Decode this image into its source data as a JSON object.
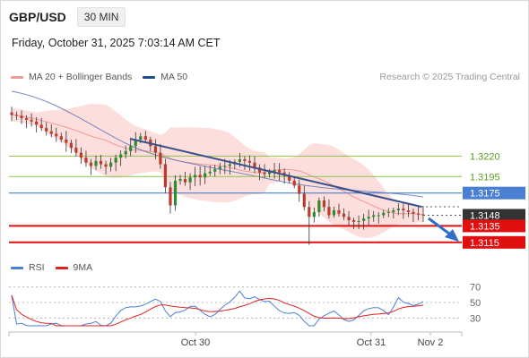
{
  "header": {
    "pair": "GBP/USD",
    "timeframe": "30 MIN"
  },
  "datetime": "Friday, October 31, 2025 7:03:14 AM CET",
  "legend_main": [
    {
      "label": "MA 20 + Bollinger Bands",
      "color": "#f29a94"
    },
    {
      "label": "MA 50",
      "color": "#1f4e8c"
    }
  ],
  "legend_rsi": [
    {
      "label": "RSI",
      "color": "#4a7fd1"
    },
    {
      "label": "9MA",
      "color": "#e02020"
    }
  ],
  "credit": "Research © 2025 Trading Central",
  "colors": {
    "bull": "#2e8b2e",
    "bear": "#c0392b",
    "resistance": "#8bc34a",
    "pivot": "#4a7fd1",
    "support": "#e01010",
    "last": "#333333",
    "trendline": "#3b4f8c",
    "band": "#fbd3d0",
    "ma20": "#f29a94",
    "ma50": "#5a6fb0",
    "rsi": "#4a7fd1",
    "rsi_ma": "#e02020"
  },
  "chart_data": {
    "type": "candlestick",
    "instrument": "GBP/USD",
    "timeframe": "30 MIN",
    "ylim": [
      1.3105,
      1.329
    ],
    "x_ticks": [
      "Oct 30",
      "Oct 31",
      "Nov 2"
    ],
    "levels": [
      {
        "value": 1.322,
        "label": "1.3220",
        "kind": "resistance"
      },
      {
        "value": 1.3195,
        "label": "1.3195",
        "kind": "resistance"
      },
      {
        "value": 1.3175,
        "label": "1.3175",
        "kind": "pivot"
      },
      {
        "value": 1.3148,
        "label": "1.3148",
        "kind": "last"
      },
      {
        "value": 1.3135,
        "label": "1.3135",
        "kind": "support"
      },
      {
        "value": 1.3115,
        "label": "1.3115",
        "kind": "support"
      }
    ],
    "trendline": {
      "from": [
        1.3248
      ],
      "to": [
        1.3161
      ]
    },
    "price_path": [
      1.327,
      1.3269,
      1.3266,
      1.3264,
      1.3262,
      1.3258,
      1.3254,
      1.325,
      1.3247,
      1.3244,
      1.324,
      1.3236,
      1.323,
      1.3224,
      1.3218,
      1.3212,
      1.3208,
      1.3214,
      1.321,
      1.3207,
      1.3212,
      1.3218,
      1.3222,
      1.3226,
      1.3232,
      1.324,
      1.3244,
      1.324,
      1.3232,
      1.3224,
      1.321,
      1.3182,
      1.316,
      1.319,
      1.3192,
      1.3188,
      1.3194,
      1.3197,
      1.3194,
      1.3199,
      1.3201,
      1.3204,
      1.3207,
      1.3208,
      1.321,
      1.3213,
      1.3216,
      1.3214,
      1.3212,
      1.3206,
      1.32,
      1.3198,
      1.3201,
      1.3203,
      1.32,
      1.3196,
      1.319,
      1.3184,
      1.3174,
      1.3158,
      1.3146,
      1.3152,
      1.3166,
      1.3158,
      1.3148,
      1.3154,
      1.315,
      1.3146,
      1.3142,
      1.314,
      1.3141,
      1.3144,
      1.3146,
      1.3148,
      1.3148,
      1.3151,
      1.3152,
      1.3154,
      1.3156,
      1.3154,
      1.3152,
      1.315,
      1.3149,
      1.3148
    ],
    "rsi": {
      "levels": [
        70,
        50,
        30
      ],
      "ylim": [
        20,
        80
      ]
    },
    "forecast_arrow": "down"
  }
}
